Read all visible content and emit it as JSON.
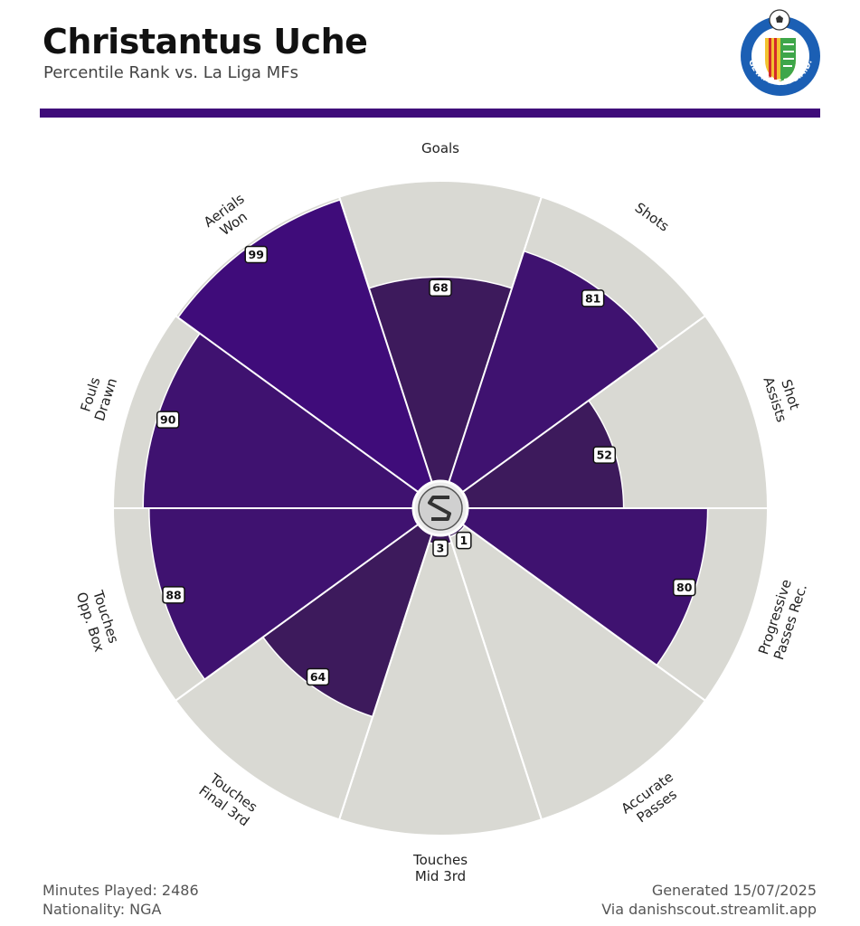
{
  "header": {
    "title": "Christantus Uche",
    "subtitle": "Percentile Rank vs. La Liga MFs"
  },
  "footer": {
    "minutes": "Minutes Played: 2486",
    "nationality": "Nationality: NGA",
    "generated": "Generated 15/07/2025",
    "via": "Via danishscout.streamlit.app"
  },
  "club_logo": {
    "text": "GETAFE C.F. S.A.D.",
    "colors": {
      "ring": "#1b5fb4",
      "red": "#d42a2a",
      "yellow": "#f2c230",
      "green": "#3ea64a"
    }
  },
  "colors": {
    "accent": "#3f0c7a",
    "background_wedge": "#d9d9d3",
    "wedge_colors": [
      "#3d1a5c",
      "#3f1270",
      "#3d1a5c",
      "#3f1270",
      "#3d1a5c",
      "#3d1a5c",
      "#3d1a5c",
      "#3f1270",
      "#3f1270",
      "#3f0c7a"
    ]
  },
  "chart_data": {
    "type": "polar-bar",
    "title": "Christantus Uche",
    "subtitle": "Percentile Rank vs. La Liga MFs",
    "rlim": [
      0,
      100
    ],
    "categories": [
      [
        "Goals"
      ],
      [
        "Shots"
      ],
      [
        "Shot",
        "Assists"
      ],
      [
        "Progressive",
        "Passes Rec."
      ],
      [
        "Accurate",
        "Passes"
      ],
      [
        "Touches",
        "Mid 3rd"
      ],
      [
        "Touches",
        "Final 3rd"
      ],
      [
        "Touches",
        "Opp. Box"
      ],
      [
        "Fouls",
        "Drawn"
      ],
      [
        "Aerials",
        "Won"
      ]
    ],
    "values": [
      68,
      81,
      52,
      80,
      1,
      3,
      64,
      88,
      90,
      99
    ]
  }
}
